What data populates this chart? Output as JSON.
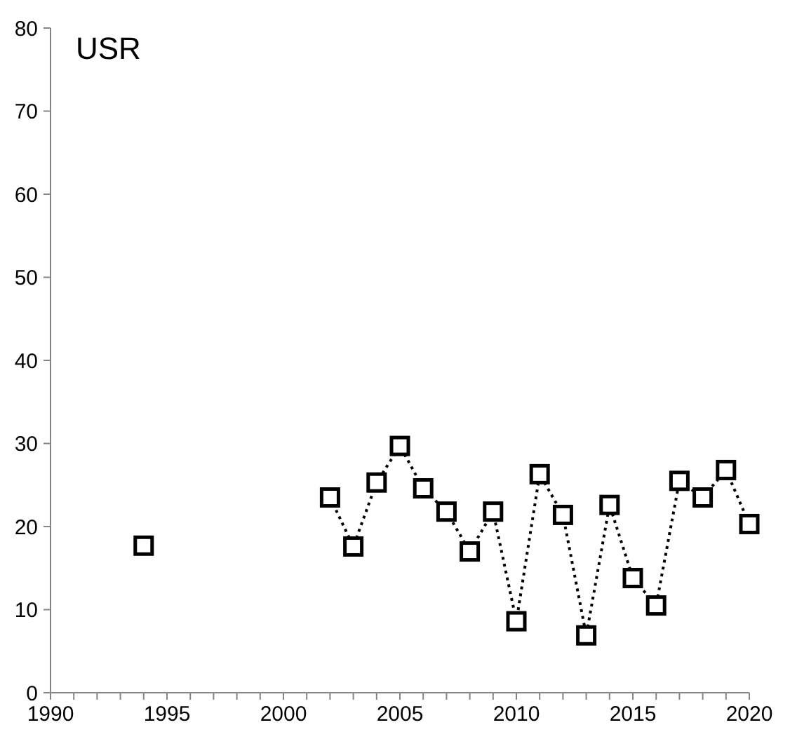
{
  "chart_data": {
    "type": "line",
    "title": "USR",
    "marker": "square",
    "line_style": "dotted",
    "grid": false,
    "xlim": [
      1990,
      2020
    ],
    "xticks": [
      1990,
      {
        "value": 1991,
        "label": null
      },
      {
        "value": 1992,
        "label": null
      },
      {
        "value": 1993,
        "label": null
      },
      {
        "value": 1994,
        "label": null
      },
      1995,
      {
        "value": 1996,
        "label": null
      },
      {
        "value": 1997,
        "label": null
      },
      {
        "value": 1998,
        "label": null
      },
      {
        "value": 1999,
        "label": null
      },
      2000,
      {
        "value": 2001,
        "label": null
      },
      {
        "value": 2002,
        "label": null
      },
      {
        "value": 2003,
        "label": null
      },
      {
        "value": 2004,
        "label": null
      },
      2005,
      {
        "value": 2006,
        "label": null
      },
      {
        "value": 2007,
        "label": null
      },
      {
        "value": 2008,
        "label": null
      },
      {
        "value": 2009,
        "label": null
      },
      2010,
      {
        "value": 2011,
        "label": null
      },
      {
        "value": 2012,
        "label": null
      },
      {
        "value": 2013,
        "label": null
      },
      {
        "value": 2014,
        "label": null
      },
      2015,
      {
        "value": 2016,
        "label": null
      },
      {
        "value": 2017,
        "label": null
      },
      {
        "value": 2018,
        "label": null
      },
      {
        "value": 2019,
        "label": null
      },
      2020
    ],
    "ylim": [
      0,
      80
    ],
    "yticks": [
      0,
      10,
      20,
      30,
      40,
      50,
      60,
      70,
      80
    ],
    "series": [
      {
        "type": "scatter",
        "color": "#000000",
        "x": [
          1994
        ],
        "values": [
          17.7
        ]
      },
      {
        "color": "#000000",
        "x": [
          2002,
          2003,
          2004,
          2005,
          2006,
          2007,
          2008,
          2009,
          2010,
          2011,
          2012,
          2013,
          2014,
          2015,
          2016,
          2017,
          2018,
          2019,
          2020
        ],
        "values": [
          23.5,
          17.6,
          25.3,
          29.7,
          24.6,
          21.8,
          17.0,
          21.8,
          8.6,
          26.3,
          21.4,
          6.9,
          22.6,
          13.8,
          10.5,
          25.5,
          23.5,
          26.8,
          20.3
        ]
      }
    ]
  }
}
